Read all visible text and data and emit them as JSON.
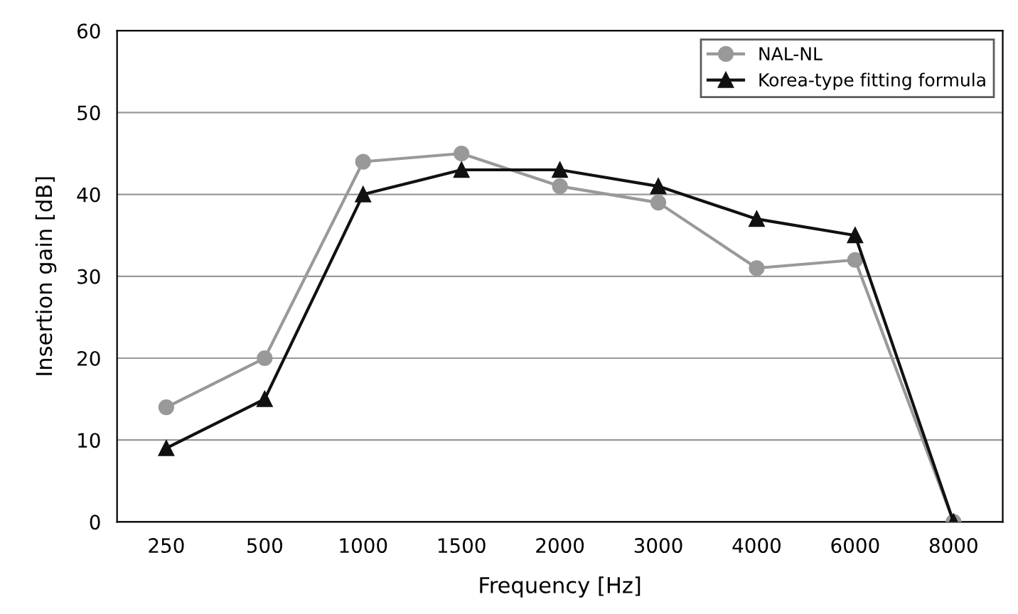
{
  "chart_data": {
    "type": "line",
    "xlabel": "Frequency [Hz]",
    "ylabel": "Insertion gain [dB]",
    "categories": [
      "250",
      "500",
      "1000",
      "1500",
      "2000",
      "3000",
      "4000",
      "6000",
      "8000"
    ],
    "series": [
      {
        "name": "NAL-NL",
        "color": "#999999",
        "marker": "circle",
        "values": [
          14,
          20,
          44,
          45,
          41,
          39,
          31,
          32,
          0
        ]
      },
      {
        "name": "Korea-type fitting formula",
        "color": "#111111",
        "marker": "triangle",
        "values": [
          9,
          15,
          40,
          43,
          43,
          41,
          37,
          35,
          0
        ]
      }
    ],
    "ylim": [
      0,
      60
    ],
    "yticks": [
      0,
      10,
      20,
      30,
      40,
      50,
      60
    ],
    "grid": "y",
    "legend": "top right",
    "line_style": "solid"
  }
}
